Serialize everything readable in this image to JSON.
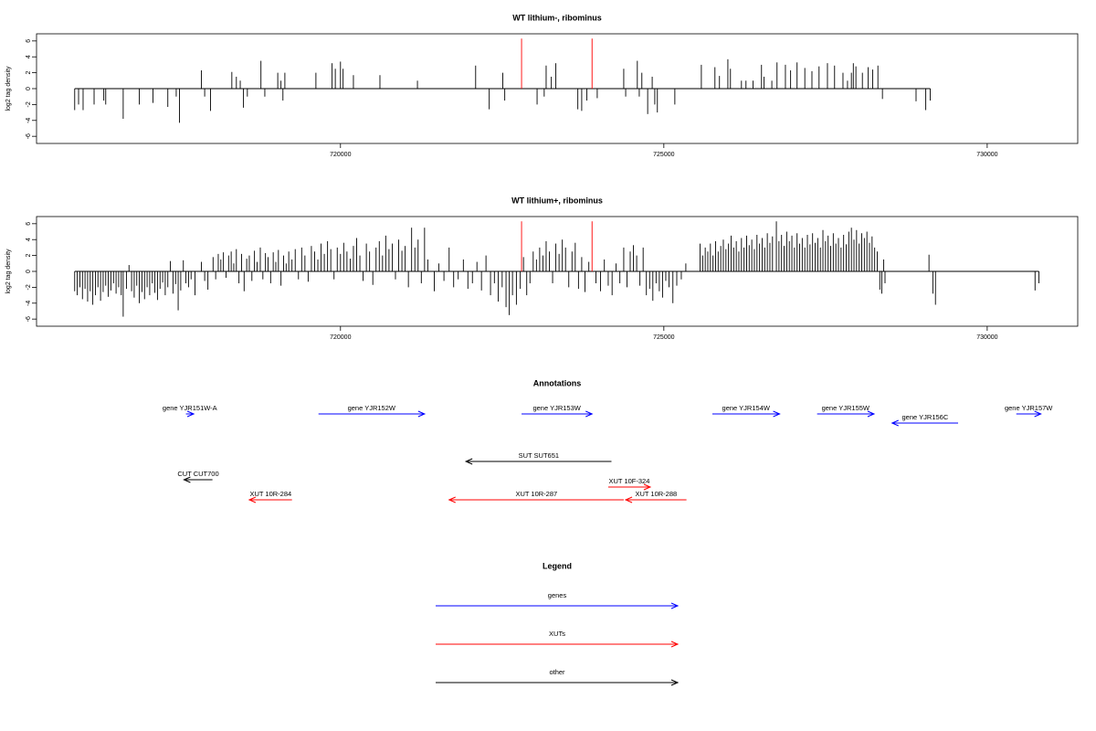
{
  "chart_data": [
    {
      "type": "needle",
      "title": "WT lithium-, ribominus",
      "ylabel": "log2 tag density",
      "xlim": [
        715300,
        731400
      ],
      "ylim": [
        -6.9,
        6.9
      ],
      "xticks": [
        720000,
        725000,
        730000
      ],
      "yticks": [
        -6,
        -4,
        -2,
        0,
        2,
        4,
        6
      ],
      "series": [
        {
          "color": "#000000",
          "x": [
            715890,
            715950,
            716020,
            716190,
            716340,
            716370,
            716640,
            716890,
            717100,
            717330,
            717460,
            717510,
            717850,
            717900,
            717990,
            718320,
            718390,
            718450,
            718500,
            718560,
            718770,
            718830,
            719030,
            719080,
            719110,
            719140,
            719620,
            719870,
            719920,
            720000,
            720040,
            720200,
            720610,
            721190,
            722090,
            722300,
            722510,
            722540,
            723040,
            723150,
            723180,
            723260,
            723330,
            723670,
            723730,
            723810,
            723970,
            724380,
            724410,
            724590,
            724620,
            724660,
            724750,
            724820,
            724860,
            724900,
            725170,
            725580,
            725790,
            725860,
            725990,
            726030,
            726200,
            726270,
            726380,
            726510,
            726550,
            726670,
            726750,
            726880,
            726960,
            727060,
            727180,
            727290,
            727400,
            727530,
            727640,
            727770,
            727840,
            727900,
            727930,
            727970,
            728070,
            728160,
            728230,
            728310,
            728380,
            728900,
            729050,
            729120
          ],
          "values": [
            -2.7,
            -2.0,
            -2.7,
            -2.0,
            -1.5,
            -2.0,
            -3.8,
            -2.0,
            -1.8,
            -2.3,
            -1.0,
            -4.3,
            2.3,
            -1.0,
            -2.8,
            2.1,
            1.5,
            1.0,
            -2.4,
            -1.0,
            3.5,
            -1.0,
            2.0,
            1.0,
            -1.5,
            2.0,
            2.0,
            3.2,
            2.5,
            3.4,
            2.5,
            1.7,
            1.7,
            1.0,
            2.9,
            -2.6,
            2.0,
            -1.5,
            -2.0,
            -1.0,
            2.9,
            1.5,
            3.2,
            -2.6,
            -2.8,
            -1.5,
            -1.2,
            2.5,
            -1.0,
            3.5,
            -1.0,
            2.0,
            -3.2,
            1.5,
            -2.0,
            -3.0,
            -2.0,
            3.0,
            2.7,
            1.6,
            3.7,
            2.5,
            1.0,
            1.0,
            1.0,
            3.0,
            1.5,
            1.0,
            3.3,
            3.0,
            2.3,
            3.3,
            2.6,
            2.2,
            2.8,
            3.2,
            2.9,
            2.0,
            1.0,
            2.0,
            3.2,
            2.8,
            2.0,
            2.7,
            2.4,
            2.9,
            -1.3,
            -1.6,
            -2.7,
            -1.5
          ]
        },
        {
          "color": "#ff0000",
          "x": [
            722800,
            723890
          ],
          "values": [
            6.3,
            6.3
          ]
        }
      ]
    },
    {
      "type": "needle",
      "title": "WT lithium+, ribominus",
      "ylabel": "log2 tag density",
      "xlim": [
        715300,
        731400
      ],
      "ylim": [
        -6.9,
        6.9
      ],
      "xticks": [
        720000,
        725000,
        730000
      ],
      "yticks": [
        -6,
        -4,
        -2,
        0,
        2,
        4,
        6
      ],
      "series": [
        {
          "color": "#000000",
          "x": [
            715890,
            715930,
            715970,
            716010,
            716050,
            716090,
            716130,
            716170,
            716210,
            716250,
            716290,
            716330,
            716370,
            716410,
            716450,
            716490,
            716530,
            716570,
            716610,
            716640,
            716690,
            716730,
            716770,
            716810,
            716850,
            716890,
            716930,
            716970,
            717010,
            717050,
            717090,
            717130,
            717170,
            717210,
            717250,
            717290,
            717330,
            717370,
            717410,
            717450,
            717490,
            717530,
            717570,
            717610,
            717650,
            717690,
            717750,
            717850,
            717900,
            717950,
            718030,
            718070,
            718110,
            718150,
            718190,
            718230,
            718270,
            718310,
            718350,
            718390,
            718430,
            718470,
            718510,
            718550,
            718590,
            718630,
            718670,
            718710,
            718760,
            718800,
            718840,
            718880,
            718920,
            718960,
            719000,
            719040,
            719080,
            719120,
            719160,
            719200,
            719250,
            719300,
            719350,
            719400,
            719450,
            719500,
            719550,
            719600,
            719650,
            719700,
            719750,
            719800,
            719850,
            719900,
            719950,
            720000,
            720050,
            720100,
            720150,
            720200,
            720250,
            720300,
            720350,
            720400,
            720450,
            720500,
            720550,
            720600,
            720650,
            720700,
            720750,
            720800,
            720850,
            720900,
            720950,
            721000,
            721050,
            721100,
            721150,
            721200,
            721250,
            721300,
            721350,
            721450,
            721520,
            721600,
            721680,
            721750,
            721820,
            721900,
            721970,
            722040,
            722110,
            722180,
            722250,
            722320,
            722380,
            722440,
            722500,
            722560,
            722610,
            722660,
            722720,
            722780,
            722830,
            722880,
            722930,
            722980,
            723030,
            723080,
            723130,
            723180,
            723230,
            723280,
            723330,
            723380,
            723430,
            723480,
            723530,
            723580,
            723630,
            723680,
            723730,
            723780,
            723840,
            723950,
            724020,
            724080,
            724140,
            724200,
            724260,
            724320,
            724380,
            724430,
            724480,
            724530,
            724580,
            724630,
            724680,
            724730,
            724780,
            724830,
            724880,
            724930,
            724980,
            725030,
            725080,
            725140,
            725200,
            725270,
            725340,
            725560,
            725600,
            725640,
            725680,
            725720,
            725760,
            725800,
            725840,
            725880,
            725920,
            725960,
            726000,
            726040,
            726080,
            726120,
            726160,
            726200,
            726240,
            726280,
            726320,
            726360,
            726400,
            726440,
            726480,
            726520,
            726560,
            726600,
            726640,
            726680,
            726740,
            726780,
            726820,
            726860,
            726900,
            726940,
            726980,
            727020,
            727060,
            727100,
            727140,
            727180,
            727220,
            727260,
            727300,
            727340,
            727380,
            727420,
            727460,
            727500,
            727540,
            727580,
            727620,
            727660,
            727700,
            727740,
            727780,
            727820,
            727860,
            727900,
            727940,
            727980,
            728020,
            728060,
            728100,
            728140,
            728180,
            728220,
            728260,
            728300,
            728340,
            728370,
            728400,
            728420,
            729100,
            729160,
            729200,
            730740,
            730800
          ],
          "values": [
            -2.5,
            -3.0,
            -2.0,
            -3.5,
            -2.2,
            -3.8,
            -2.5,
            -4.2,
            -3.0,
            -2.0,
            -3.7,
            -2.6,
            -1.8,
            -3.2,
            -2.4,
            -1.5,
            -2.8,
            -2.0,
            -3.0,
            -5.7,
            -2.2,
            0.8,
            -2.5,
            -3.3,
            -1.8,
            -4.0,
            -2.6,
            -3.5,
            -2.0,
            -3.0,
            -1.5,
            -2.7,
            -3.6,
            -2.2,
            -1.4,
            -3.0,
            -2.0,
            1.3,
            -2.8,
            -1.6,
            -4.9,
            -2.4,
            1.4,
            -1.5,
            -2.0,
            -1.0,
            -3.0,
            1.2,
            -1.2,
            -2.3,
            1.8,
            -1.0,
            2.2,
            1.5,
            2.4,
            -0.8,
            2.0,
            2.5,
            1.0,
            2.8,
            -1.5,
            2.2,
            -2.5,
            1.6,
            2.0,
            -1.2,
            2.6,
            1.2,
            3.0,
            -1.0,
            2.3,
            1.8,
            -1.5,
            2.4,
            1.2,
            2.7,
            -1.8,
            2.0,
            1.0,
            2.5,
            1.5,
            2.8,
            -1.0,
            3.0,
            2.0,
            -1.3,
            3.2,
            2.5,
            1.5,
            3.5,
            2.2,
            3.8,
            2.8,
            -1.0,
            3.0,
            2.2,
            3.6,
            2.5,
            1.6,
            3.2,
            4.2,
            2.0,
            -1.2,
            3.5,
            2.5,
            -1.7,
            3.0,
            3.8,
            2.0,
            4.5,
            2.8,
            3.5,
            -1.0,
            4.0,
            2.6,
            3.2,
            -2.0,
            5.5,
            3.0,
            4.0,
            -1.5,
            5.5,
            1.5,
            -2.5,
            1.0,
            -1.2,
            3.0,
            -2.0,
            -1.0,
            1.5,
            -2.2,
            -1.5,
            1.2,
            -2.4,
            2.0,
            -3.0,
            -1.5,
            -3.8,
            -2.0,
            -4.5,
            -5.5,
            -3.0,
            -4.2,
            -2.2,
            1.8,
            -3.0,
            -1.5,
            2.5,
            1.5,
            3.0,
            2.0,
            3.8,
            2.5,
            -1.5,
            3.5,
            2.2,
            4.0,
            3.0,
            -2.0,
            2.5,
            3.6,
            -2.2,
            1.8,
            -2.6,
            1.2,
            -1.5,
            -2.5,
            1.5,
            -1.8,
            -3.0,
            1.0,
            -1.5,
            3.0,
            -2.0,
            2.5,
            3.3,
            2.0,
            -1.8,
            3.0,
            -3.0,
            -2.2,
            -3.7,
            -1.5,
            -2.5,
            -3.3,
            -1.2,
            -2.0,
            -4.0,
            -1.8,
            -1.0,
            1.0,
            3.5,
            2.0,
            3.0,
            2.5,
            3.5,
            2.0,
            3.8,
            2.5,
            3.2,
            4.0,
            2.8,
            3.5,
            4.5,
            3.0,
            3.8,
            2.5,
            4.2,
            3.0,
            4.5,
            3.3,
            4.0,
            2.8,
            4.6,
            3.5,
            4.2,
            3.0,
            4.8,
            3.6,
            4.4,
            6.3,
            3.8,
            4.6,
            3.2,
            5.0,
            3.8,
            4.5,
            3.0,
            4.8,
            3.5,
            4.2,
            3.0,
            4.6,
            3.4,
            4.8,
            3.6,
            4.2,
            3.0,
            5.2,
            3.8,
            4.5,
            3.2,
            4.8,
            3.5,
            4.2,
            3.0,
            4.6,
            3.4,
            5.0,
            5.5,
            4.0,
            5.2,
            3.5,
            4.8,
            4.2,
            5.0,
            3.6,
            4.4,
            3.0,
            2.5,
            -2.3,
            -2.8,
            1.5,
            -1.5,
            2.1,
            -2.8,
            -4.2,
            -2.4,
            -1.5
          ]
        },
        {
          "color": "#ff0000",
          "x": [
            722800,
            723890
          ],
          "values": [
            6.3,
            6.3
          ]
        }
      ]
    }
  ],
  "annotations": {
    "title": "Annotations",
    "features": [
      {
        "label": "gene YJR151W-A",
        "start": 717610,
        "end": 717730,
        "strand": "+",
        "color": "#0000ff"
      },
      {
        "label": "gene YJR152W",
        "start": 719660,
        "end": 721300,
        "strand": "+",
        "color": "#0000ff"
      },
      {
        "label": "gene YJR153W",
        "start": 722800,
        "end": 723890,
        "strand": "+",
        "color": "#0000ff"
      },
      {
        "label": "gene YJR154W",
        "start": 725750,
        "end": 726790,
        "strand": "+",
        "color": "#0000ff"
      },
      {
        "label": "gene YJR155W",
        "start": 727370,
        "end": 728250,
        "strand": "+",
        "color": "#0000ff"
      },
      {
        "label": "gene YJR156C",
        "start": 728530,
        "end": 729550,
        "strand": "-",
        "color": "#0000ff"
      },
      {
        "label": "gene YJR157W",
        "start": 730450,
        "end": 730830,
        "strand": "+",
        "color": "#0000ff"
      },
      {
        "label": "SUT SUT651",
        "start": 721940,
        "end": 724190,
        "strand": "-",
        "color": "#000000"
      },
      {
        "label": "CUT CUT700",
        "start": 717580,
        "end": 718020,
        "strand": "-",
        "color": "#000000"
      },
      {
        "label": "XUT 10R-284",
        "start": 718590,
        "end": 719250,
        "strand": "-",
        "color": "#ff0000"
      },
      {
        "label": "XUT 10R-287",
        "start": 721680,
        "end": 724380,
        "strand": "-",
        "color": "#ff0000"
      },
      {
        "label": "XUT 10F-324",
        "start": 724140,
        "end": 724790,
        "strand": "+",
        "color": "#ff0000"
      },
      {
        "label": "XUT 10R-288",
        "start": 724410,
        "end": 725350,
        "strand": "-",
        "color": "#ff0000"
      }
    ]
  },
  "legend": {
    "title": "Legend",
    "entries": [
      {
        "label": "genes",
        "color": "#0000ff"
      },
      {
        "label": "XUTs",
        "color": "#ff0000"
      },
      {
        "label": "other",
        "color": "#000000"
      }
    ]
  }
}
